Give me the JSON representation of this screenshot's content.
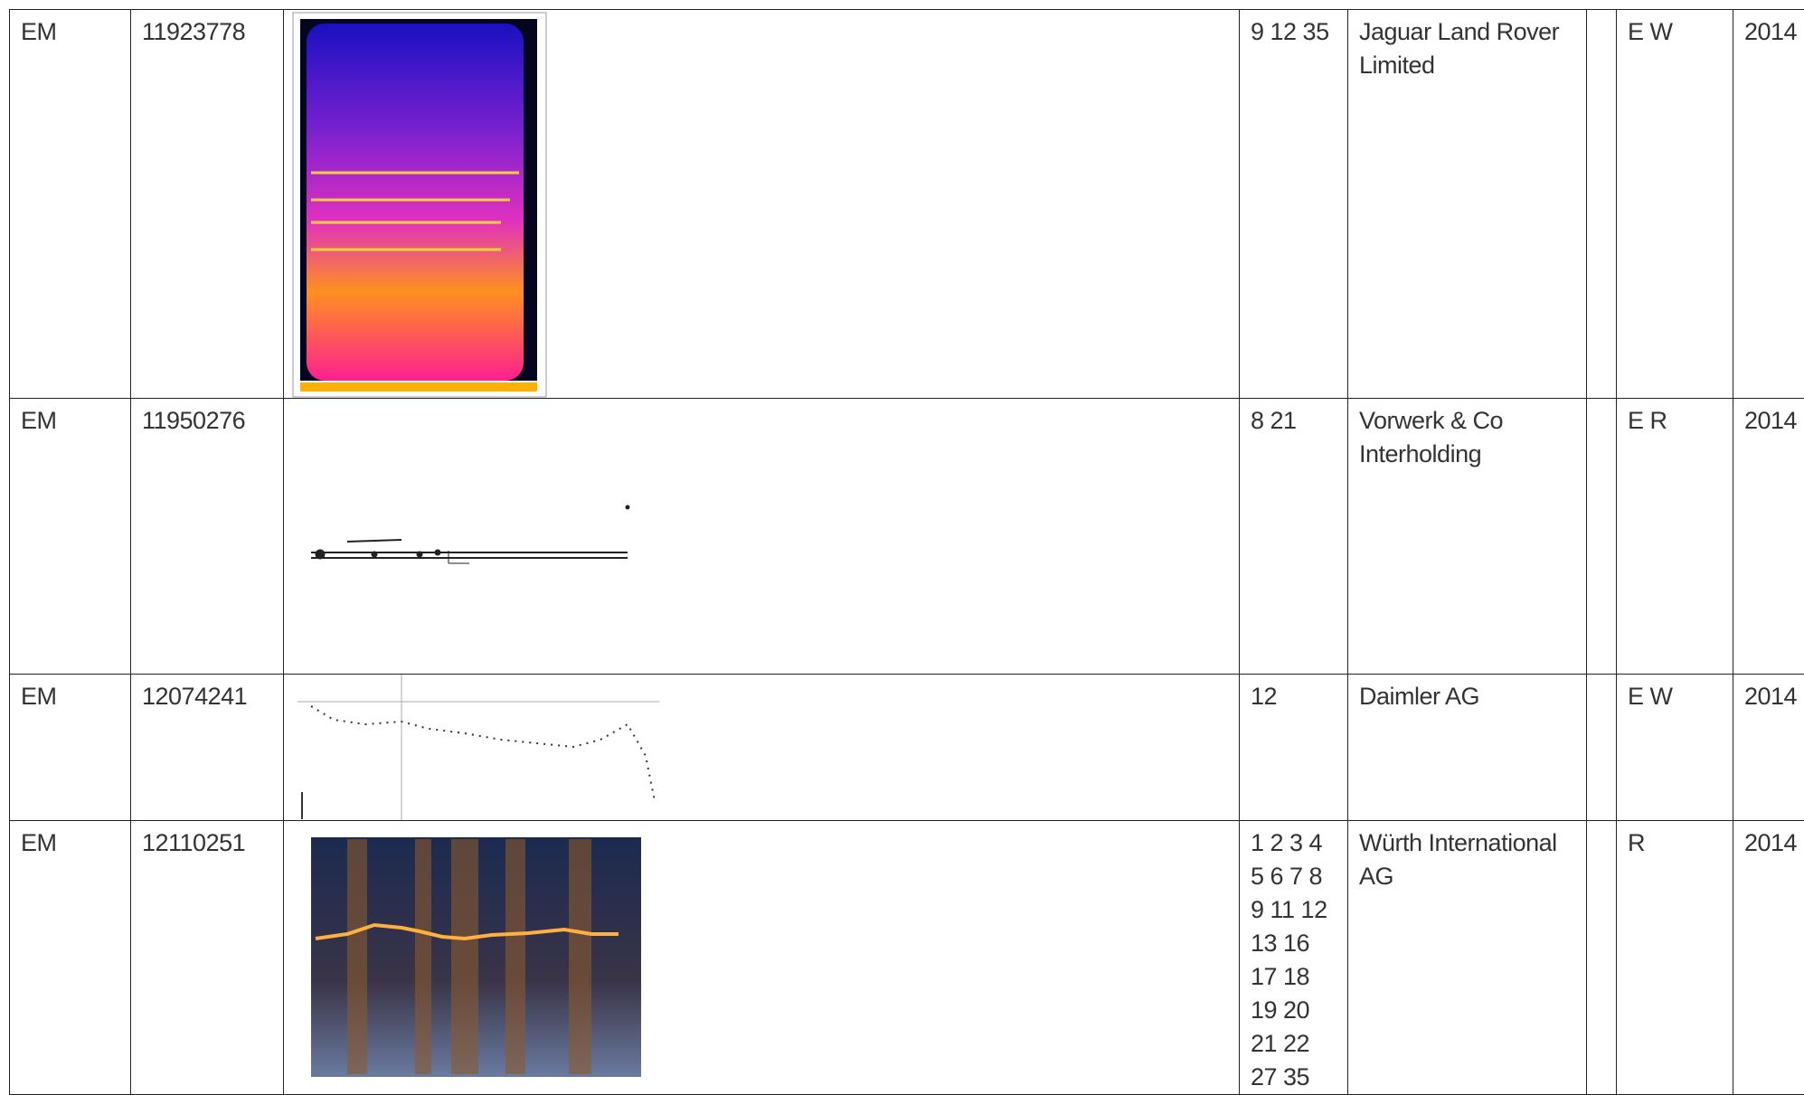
{
  "table": {
    "rows": [
      [
        "EM",
        "11923778",
        "9 12 35",
        "Jaguar Land Rover Limited",
        "E W",
        "2014"
      ],
      [
        "EM",
        "11950276",
        "8 21",
        "Vorwerk & Co Interholding",
        "E R",
        "2014"
      ],
      [
        "EM",
        "12074241",
        "12",
        "Daimler AG",
        "E W",
        "2014"
      ],
      [
        "EM",
        "12110251",
        "1 2 3 4 5 6 7 8 9 11 12 13 16 17 18 19 20 21 22 27 35",
        "Würth International AG",
        "R",
        "2014"
      ]
    ]
  }
}
